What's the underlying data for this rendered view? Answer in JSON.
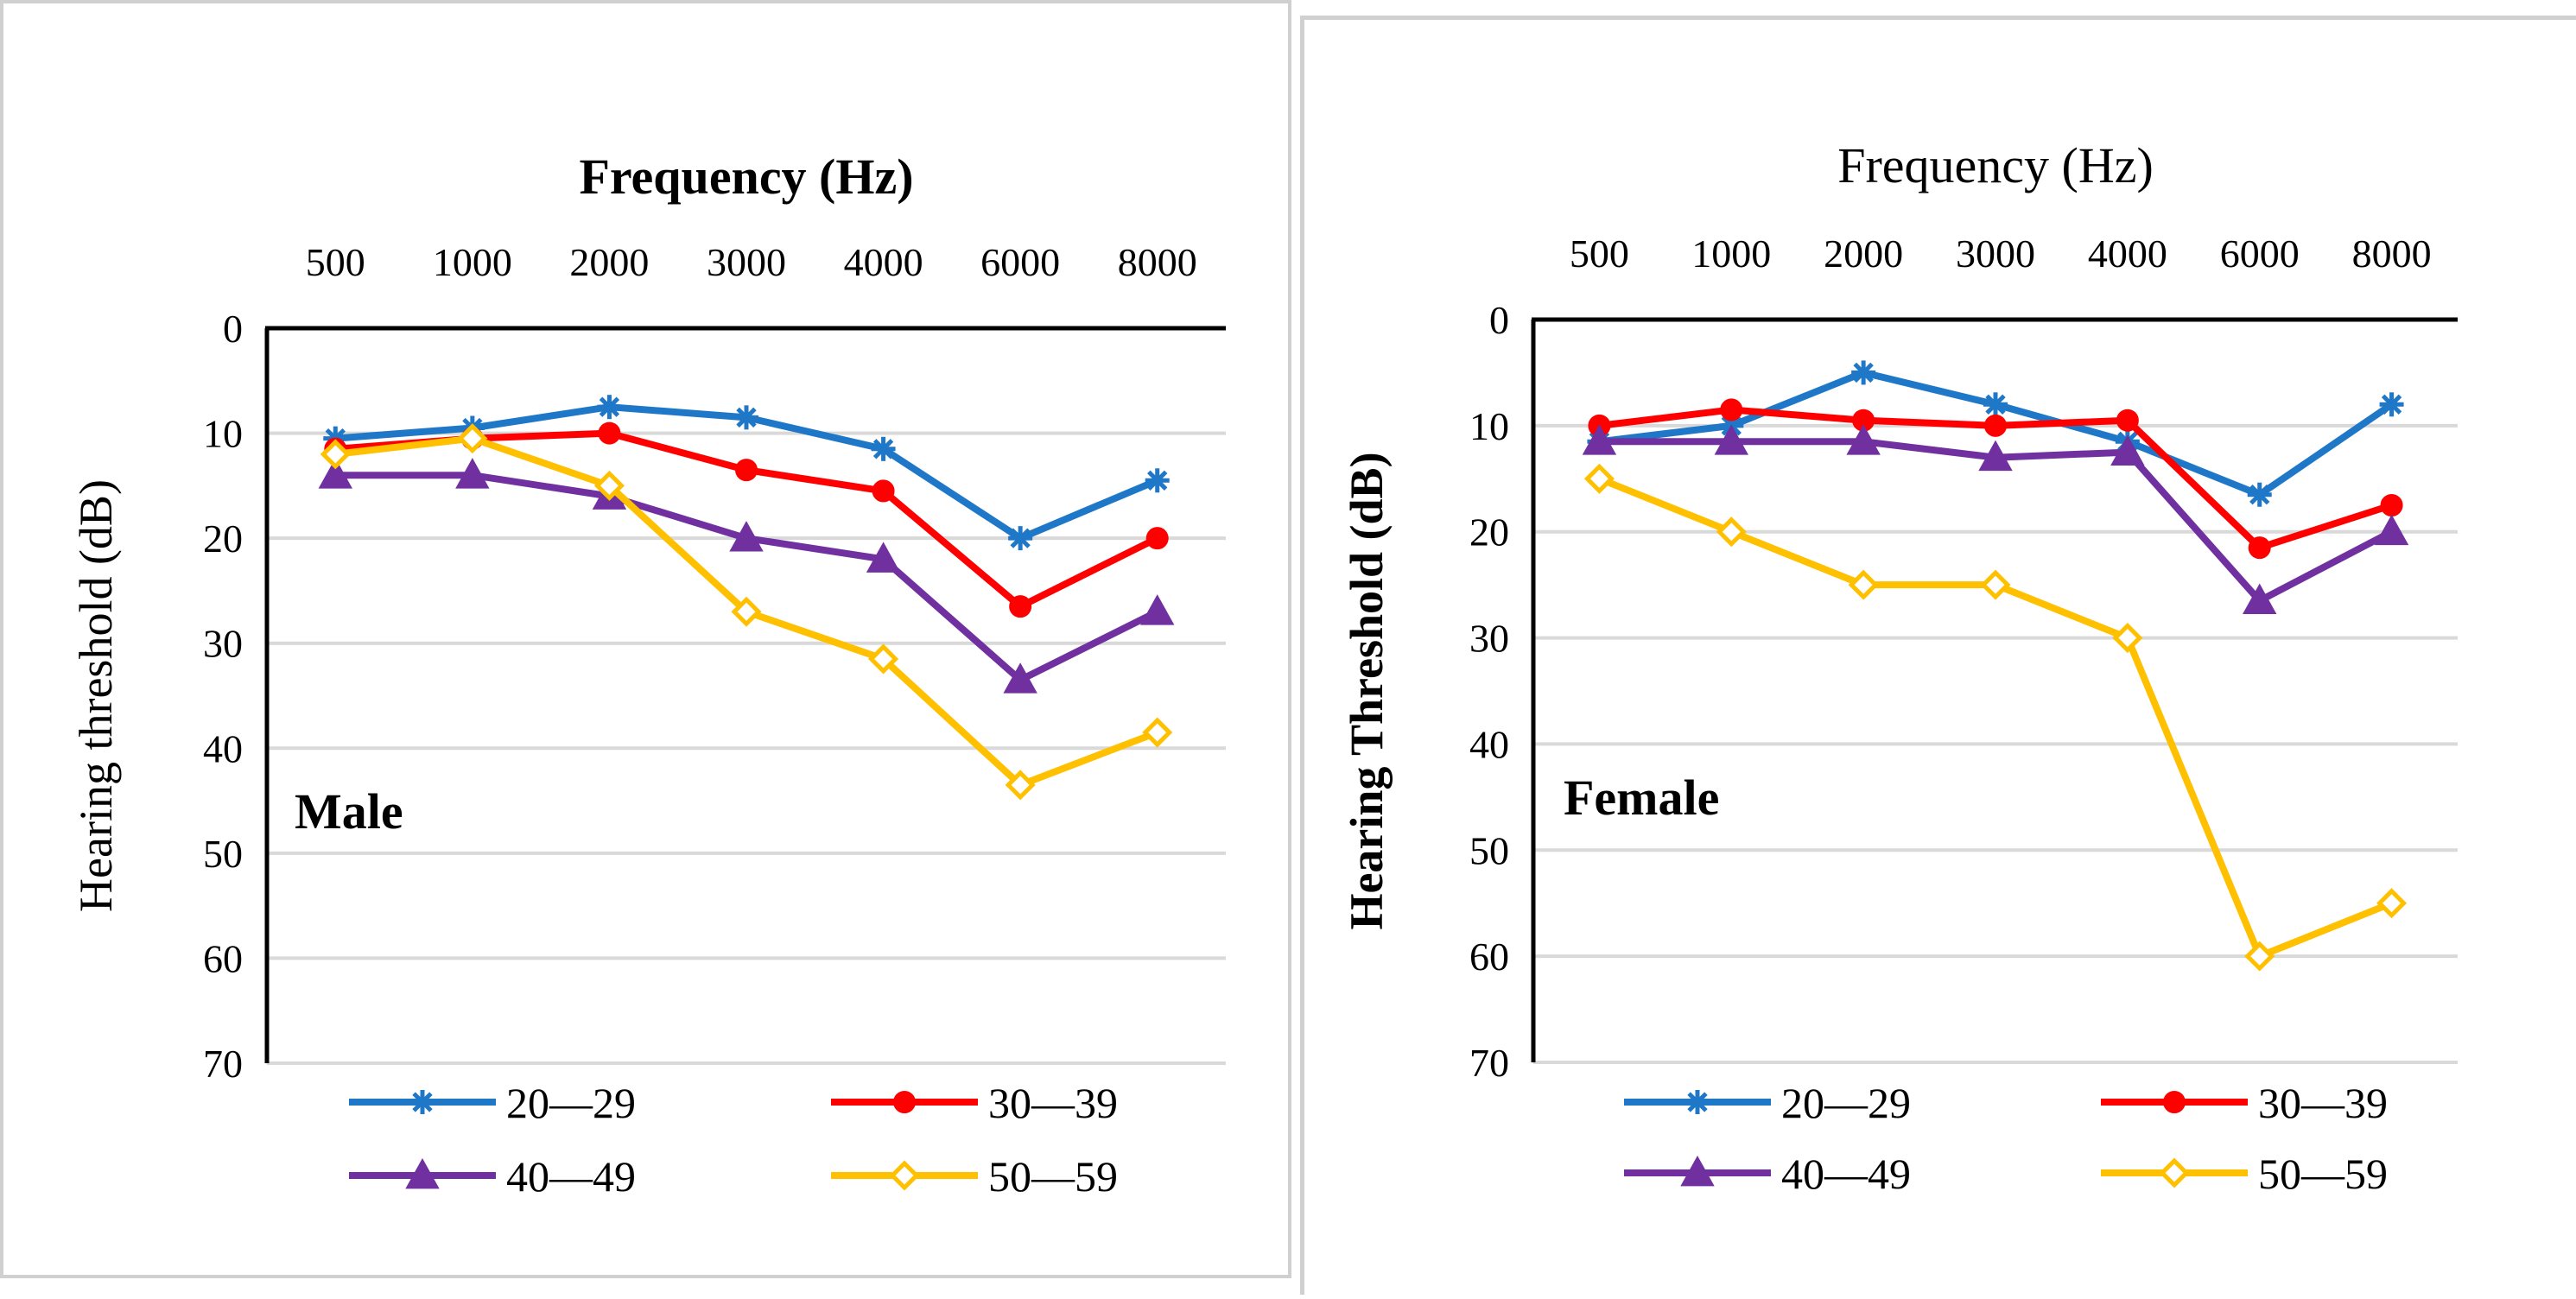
{
  "colors": {
    "20_29": "#1f77c8",
    "30_39": "#ff0000",
    "40_49": "#7030a0",
    "50_59": "#ffc000",
    "axis": "#000000",
    "grid": "#d9d9d9"
  },
  "chart_data": [
    {
      "type": "line",
      "panel_label": "Male",
      "title": "Frequency (Hz)",
      "xlabel": "Frequency (Hz)",
      "ylabel": "Hearing threshold (dB)",
      "categories": [
        "500",
        "1000",
        "2000",
        "3000",
        "4000",
        "6000",
        "8000"
      ],
      "y_ticks": [
        "0",
        "10",
        "20",
        "30",
        "40",
        "50",
        "60",
        "70"
      ],
      "ylim": [
        0,
        70
      ],
      "y_reversed": true,
      "legend_position": "bottom",
      "series": [
        {
          "name": "20—29",
          "marker": "star",
          "color_key": "20_29",
          "values": [
            10.5,
            9.5,
            7.5,
            8.5,
            11.5,
            20,
            14.5
          ]
        },
        {
          "name": "30—39",
          "marker": "circle",
          "color_key": "30_39",
          "values": [
            11.5,
            10.5,
            10,
            13.5,
            15.5,
            26.5,
            20
          ]
        },
        {
          "name": "40—49",
          "marker": "triangle",
          "color_key": "40_49",
          "values": [
            14,
            14,
            16,
            20,
            22,
            33.5,
            27
          ]
        },
        {
          "name": "50—59",
          "marker": "diamond",
          "color_key": "50_59",
          "values": [
            12,
            10.5,
            15,
            27,
            31.5,
            43.5,
            38.5
          ]
        }
      ]
    },
    {
      "type": "line",
      "panel_label": "Female",
      "title": "Frequency (Hz)",
      "xlabel": "Frequency (Hz)",
      "ylabel": "Hearing Threshold (dB)",
      "categories": [
        "500",
        "1000",
        "2000",
        "3000",
        "4000",
        "6000",
        "8000"
      ],
      "y_ticks": [
        "0",
        "10",
        "20",
        "30",
        "40",
        "50",
        "60",
        "70"
      ],
      "ylim": [
        0,
        70
      ],
      "y_reversed": true,
      "legend_position": "bottom",
      "series": [
        {
          "name": "20—29",
          "marker": "star",
          "color_key": "20_29",
          "values": [
            11.5,
            10,
            5,
            8,
            11.5,
            16.5,
            8
          ]
        },
        {
          "name": "30—39",
          "marker": "circle",
          "color_key": "30_39",
          "values": [
            10,
            8.5,
            9.5,
            10,
            9.5,
            21.5,
            17.5
          ]
        },
        {
          "name": "40—49",
          "marker": "triangle",
          "color_key": "40_49",
          "values": [
            11.5,
            11.5,
            11.5,
            13,
            12.5,
            26.5,
            20
          ]
        },
        {
          "name": "50—59",
          "marker": "diamond",
          "color_key": "50_59",
          "values": [
            15,
            20,
            25,
            25,
            30,
            60,
            55
          ]
        }
      ]
    }
  ]
}
